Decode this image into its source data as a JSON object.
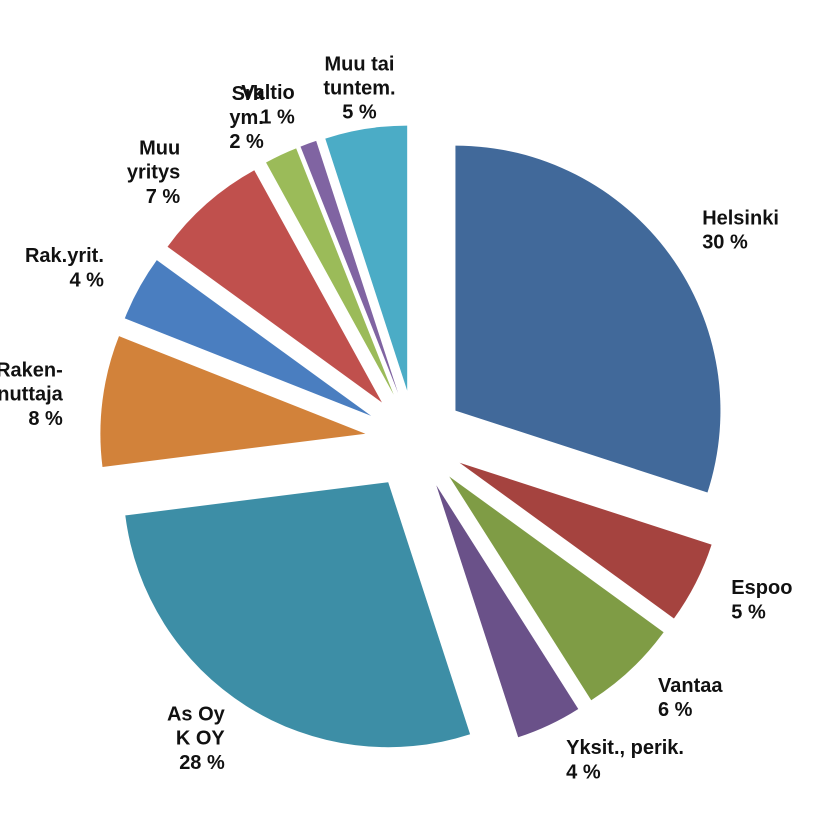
{
  "chart_data": {
    "type": "pie",
    "categories": [
      "Helsinki",
      "Espoo",
      "Vantaa",
      "Yksit., perik.",
      "As Oy\nK OY",
      "Raken-\nnuttaja",
      "Rak.yrit.",
      "Muu\nyritys",
      "Srk\nym.",
      "Valtio",
      "Muu tai\ntuntem."
    ],
    "values": [
      30,
      5,
      6,
      4,
      28,
      8,
      4,
      7,
      2,
      1,
      5
    ],
    "value_labels": [
      "30 %",
      "5 %",
      "6 %",
      "4 %",
      "28 %",
      "8 %",
      "4 %",
      "7 %",
      "2 %",
      "1 %",
      "5 %"
    ],
    "colors": [
      "#41699a",
      "#a5433f",
      "#7f9c45",
      "#6a5189",
      "#3d8ea6",
      "#d2823a",
      "#4a7ec0",
      "#c0504d",
      "#9bbb59",
      "#8064a2",
      "#4bacc6"
    ]
  }
}
